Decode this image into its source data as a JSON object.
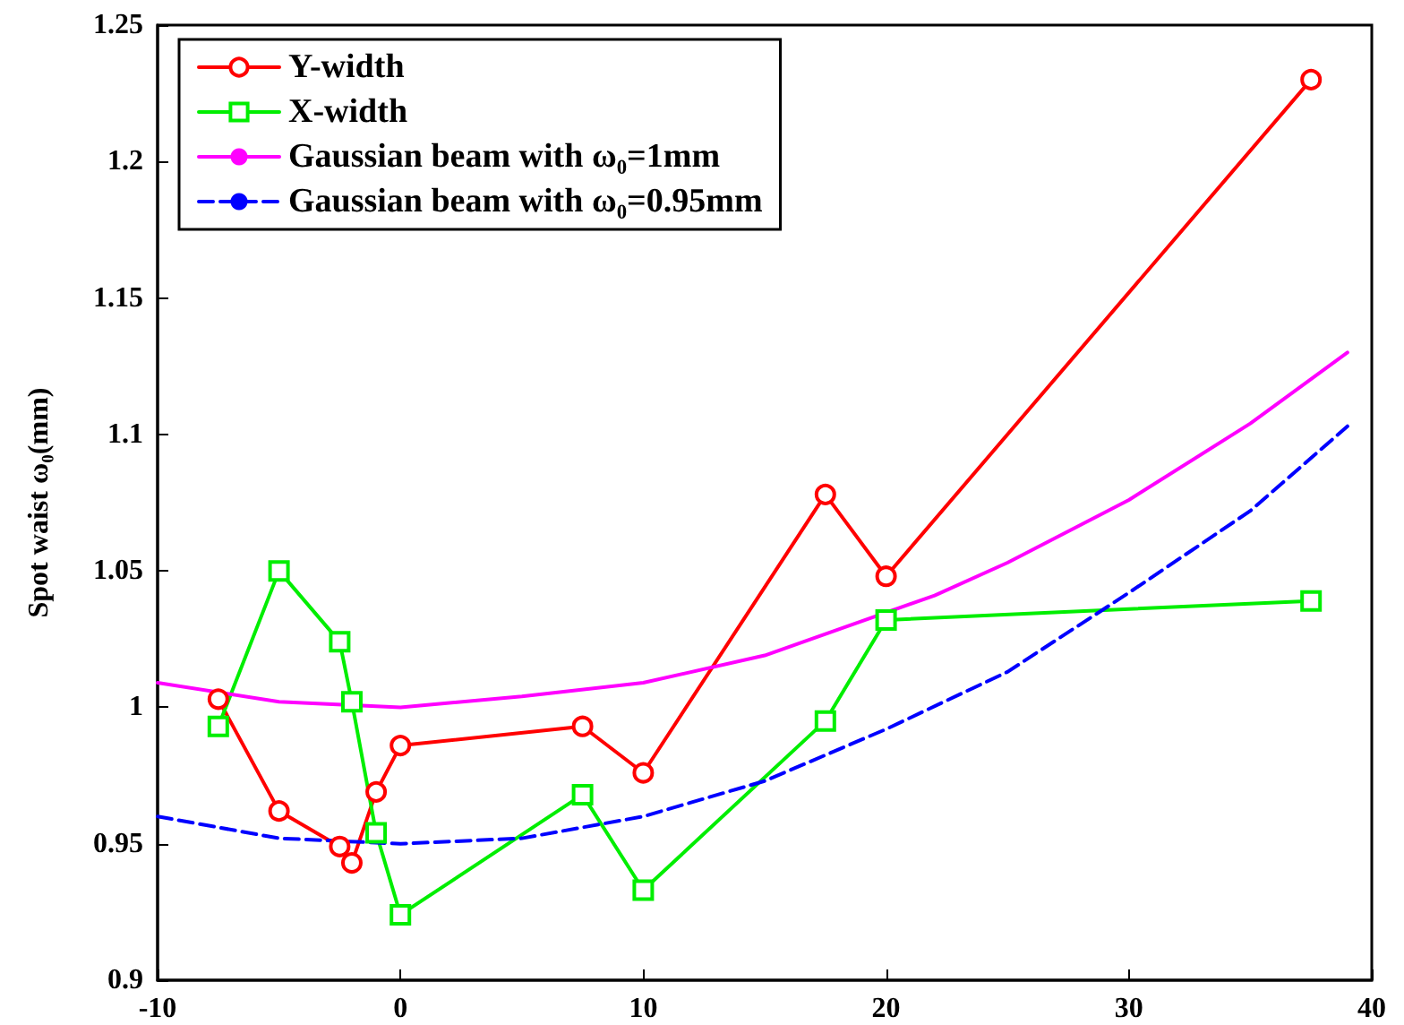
{
  "chart_data": {
    "type": "line",
    "ylabel": "Spot waist ω₀(mm)",
    "xlim": [
      -10,
      40
    ],
    "xticks": [
      -10,
      0,
      10,
      20,
      30,
      40
    ],
    "ylim": [
      0.9,
      1.25
    ],
    "yticks": [
      0.9,
      0.95,
      1,
      1.05,
      1.1,
      1.15,
      1.2,
      1.25
    ],
    "grid": false,
    "legend": "top left",
    "series": [
      {
        "name": "Y-width",
        "color": "#ff0000",
        "marker": "circle",
        "line_style": "solid",
        "x": [
          -7.5,
          -5,
          -2.5,
          -2,
          -1,
          0,
          7.5,
          10,
          17.5,
          20,
          37.5
        ],
        "values": [
          1.003,
          0.962,
          0.949,
          0.943,
          0.969,
          0.986,
          0.993,
          0.976,
          1.078,
          1.048,
          1.23
        ]
      },
      {
        "name": "X-width",
        "color": "#00ee00",
        "marker": "square",
        "line_style": "solid",
        "x": [
          -7.5,
          -5,
          -2.5,
          -2,
          -1,
          0,
          7.5,
          10,
          17.5,
          20,
          37.5
        ],
        "values": [
          0.993,
          1.05,
          1.024,
          1.002,
          0.954,
          0.924,
          0.968,
          0.933,
          0.995,
          1.032,
          1.039
        ]
      },
      {
        "name": "Gaussian beam with ω₀=1mm",
        "color": "#ff00ff",
        "marker": "none",
        "line_style": "solid",
        "x": [
          -10,
          -5,
          0,
          5,
          10,
          15,
          22,
          25,
          30,
          35,
          39
        ],
        "values": [
          1.009,
          1.002,
          1.0,
          1.004,
          1.009,
          1.019,
          1.041,
          1.053,
          1.076,
          1.104,
          1.13
        ]
      },
      {
        "name": "Gaussian beam with ω₀=0.95mm",
        "color": "#0000ff",
        "marker": "none",
        "line_style": "dashed",
        "x": [
          -10,
          -5,
          0,
          5,
          10,
          15,
          20,
          25,
          30,
          35,
          39
        ],
        "values": [
          0.96,
          0.952,
          0.95,
          0.952,
          0.96,
          0.973,
          0.992,
          1.013,
          1.042,
          1.072,
          1.103
        ]
      }
    ]
  }
}
